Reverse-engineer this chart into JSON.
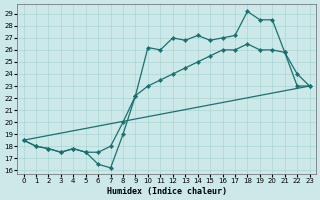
{
  "xlabel": "Humidex (Indice chaleur)",
  "xlim": [
    -0.5,
    23.5
  ],
  "ylim": [
    15.7,
    29.8
  ],
  "yticks": [
    16,
    17,
    18,
    19,
    20,
    21,
    22,
    23,
    24,
    25,
    26,
    27,
    28,
    29
  ],
  "xticks": [
    0,
    1,
    2,
    3,
    4,
    5,
    6,
    7,
    8,
    9,
    10,
    11,
    12,
    13,
    14,
    15,
    16,
    17,
    18,
    19,
    20,
    21,
    22,
    23
  ],
  "bg_color": "#cce8e8",
  "grid_color": "#aad4d4",
  "line_color": "#1a7070",
  "line1_x": [
    0,
    1,
    2,
    3,
    4,
    5,
    6,
    7,
    8,
    9,
    10,
    11,
    12,
    13,
    14,
    15,
    16,
    17,
    18,
    19,
    20,
    21,
    22,
    23
  ],
  "line1_y": [
    18.5,
    18.0,
    17.8,
    17.5,
    17.8,
    17.5,
    16.5,
    16.2,
    19.0,
    22.2,
    26.2,
    26.0,
    27.0,
    26.8,
    27.2,
    26.8,
    27.0,
    27.2,
    29.2,
    28.5,
    28.5,
    25.8,
    24.0,
    23.0
  ],
  "line2_x": [
    0,
    1,
    2,
    3,
    4,
    5,
    6,
    7,
    8,
    9,
    10,
    11,
    12,
    13,
    14,
    15,
    16,
    17,
    18,
    19,
    20,
    21,
    22,
    23
  ],
  "line2_y": [
    18.5,
    18.0,
    17.8,
    17.5,
    17.8,
    17.5,
    17.5,
    18.0,
    20.0,
    22.2,
    23.0,
    23.5,
    24.0,
    24.5,
    25.0,
    25.5,
    26.0,
    26.0,
    26.5,
    26.0,
    26.0,
    25.8,
    23.0,
    23.0
  ],
  "line3_x": [
    0,
    23
  ],
  "line3_y": [
    18.5,
    23.0
  ]
}
